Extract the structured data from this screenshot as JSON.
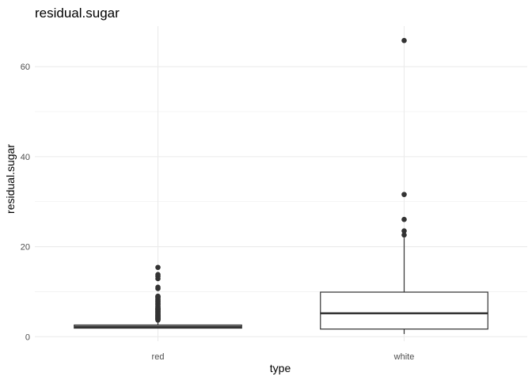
{
  "chart_data": {
    "type": "boxplot",
    "title": "residual.sugar",
    "xlabel": "type",
    "ylabel": "residual.sugar",
    "ylim": [
      -1,
      69
    ],
    "y_ticks": [
      0,
      20,
      40,
      60
    ],
    "y_tick_labels": [
      "0",
      "20",
      "40",
      "60"
    ],
    "grid": true,
    "legend": "none",
    "categories": [
      "red",
      "white"
    ],
    "boxes": [
      {
        "category": "red",
        "lower_whisker": 1.9,
        "q1": 1.9,
        "median": 2.2,
        "q3": 2.6,
        "upper_whisker": 3.6,
        "outliers": [
          3.7,
          3.8,
          3.9,
          4.0,
          4.1,
          4.2,
          4.3,
          4.4,
          4.5,
          4.6,
          4.7,
          4.8,
          5.0,
          5.1,
          5.2,
          5.4,
          5.5,
          5.6,
          5.8,
          5.9,
          6.0,
          6.1,
          6.2,
          6.3,
          6.4,
          6.6,
          6.7,
          7.0,
          7.2,
          7.3,
          7.5,
          7.8,
          7.9,
          8.1,
          8.3,
          8.6,
          8.8,
          8.9,
          9.0,
          10.7,
          11.0,
          12.9,
          13.4,
          13.8,
          15.4
        ]
      },
      {
        "category": "white",
        "lower_whisker": 0.6,
        "q1": 1.7,
        "median": 5.2,
        "q3": 9.9,
        "upper_whisker": 22.0,
        "outliers": [
          22.6,
          23.5,
          26.05,
          31.6,
          65.8
        ]
      }
    ]
  },
  "colors": {
    "grid": "#ebebeb",
    "box_stroke": "#333333",
    "box_fill": "#ffffff",
    "point": "#333333"
  }
}
